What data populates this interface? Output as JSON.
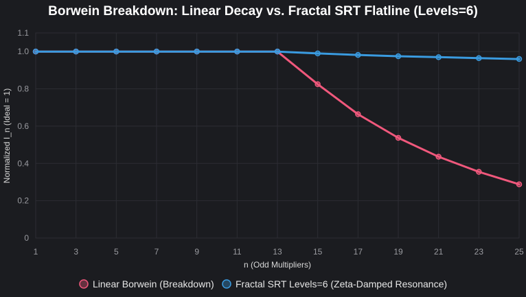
{
  "chart_data": {
    "type": "line",
    "title": "Borwein Breakdown: Linear Decay vs. Fractal SRT Flatline (Levels=6)",
    "xlabel": "n (Odd Multipliers)",
    "ylabel": "Normalized I_n (Ideal = 1)",
    "x": [
      1,
      3,
      5,
      7,
      9,
      11,
      13,
      15,
      17,
      19,
      21,
      23,
      25
    ],
    "xlim": [
      1,
      25
    ],
    "ylim": [
      0,
      1.1
    ],
    "yticks": [
      "0",
      "0.2",
      "0.4",
      "0.6",
      "0.8",
      "1.0",
      "1.1"
    ],
    "ytick_values": [
      0,
      0.2,
      0.4,
      0.6,
      0.8,
      1.0,
      1.1
    ],
    "grid": true,
    "legend_position": "bottom",
    "series": [
      {
        "name": "Linear Borwein (Breakdown)",
        "color": "#f0587c",
        "values": [
          1.0,
          1.0,
          1.0,
          1.0,
          1.0,
          1.0,
          1.0,
          0.825,
          0.664,
          0.537,
          0.436,
          0.355,
          0.288
        ]
      },
      {
        "name": "Fractal SRT Levels=6 (Zeta-Damped Resonance)",
        "color": "#3a9be0",
        "values": [
          1.0,
          1.0,
          1.0,
          1.0,
          1.0,
          1.0,
          1.0,
          0.99,
          0.982,
          0.975,
          0.97,
          0.965,
          0.96
        ]
      }
    ]
  }
}
